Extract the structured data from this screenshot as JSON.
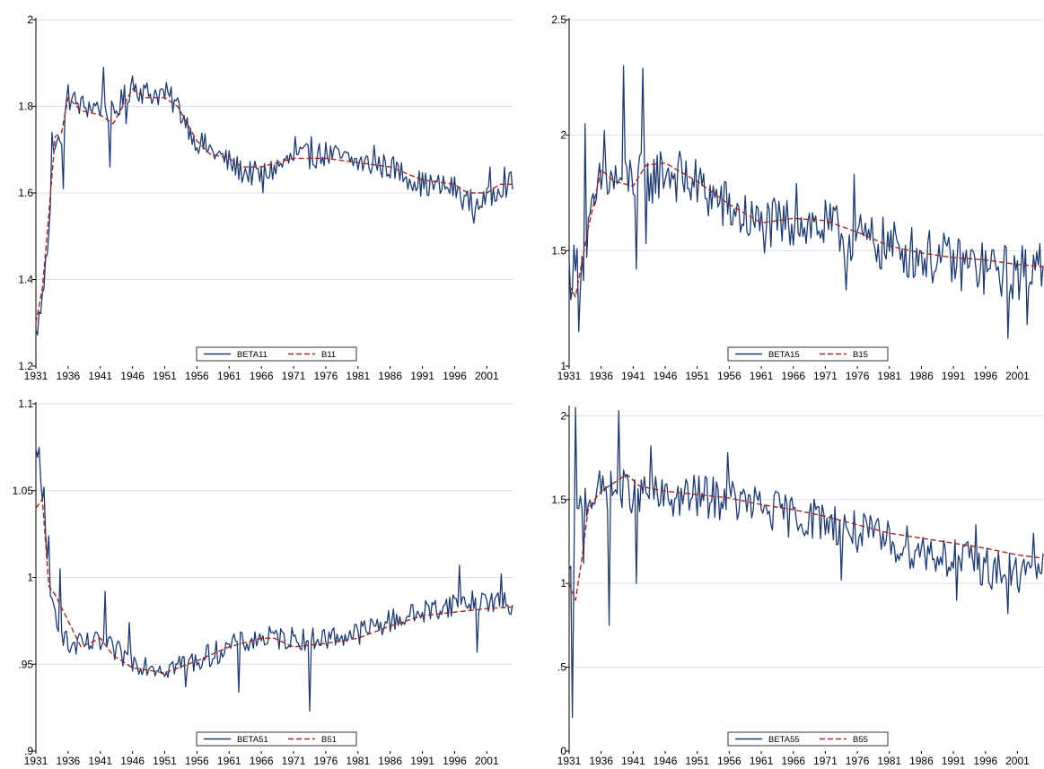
{
  "colors": {
    "solid": "#1f3a6e",
    "dashed": "#9a2a2a",
    "grid": "#dcdcf0",
    "axis": "#000000"
  },
  "chart_data": [
    {
      "type": "line",
      "title": "",
      "xlabel": "",
      "ylabel": "",
      "xlim": [
        1931,
        2005
      ],
      "ylim": [
        1.2,
        2.0
      ],
      "yticks": [
        1.2,
        1.4,
        1.6,
        1.8,
        2.0
      ],
      "ytick_labels": [
        "1.2",
        "1.4",
        "1.6",
        "1.8",
        "2"
      ],
      "xticks": [
        1931,
        1936,
        1941,
        1946,
        1951,
        1956,
        1961,
        1966,
        1971,
        1976,
        1981,
        1986,
        1991,
        1996,
        2001
      ],
      "grid": true,
      "legend": "bottom-center",
      "series": [
        {
          "name": "BETA11",
          "style": "solid",
          "volatility": 0.03,
          "x": [
            1931,
            1932,
            1933,
            1934,
            1935,
            1936,
            1938,
            1941,
            1943,
            1946,
            1948,
            1951,
            1953,
            1956,
            1958,
            1961,
            1963,
            1966,
            1971,
            1976,
            1981,
            1986,
            1991,
            1996,
            1998,
            2001,
            2003,
            2005
          ],
          "y": [
            1.27,
            1.35,
            1.52,
            1.73,
            1.7,
            1.82,
            1.8,
            1.8,
            1.78,
            1.85,
            1.83,
            1.83,
            1.8,
            1.72,
            1.7,
            1.67,
            1.65,
            1.64,
            1.68,
            1.69,
            1.67,
            1.66,
            1.62,
            1.61,
            1.58,
            1.58,
            1.62,
            1.62
          ],
          "spikes": [
            [
              1932.6,
              1.45
            ],
            [
              1933.4,
              1.74
            ],
            [
              1935.2,
              1.61
            ],
            [
              1936.0,
              1.85
            ],
            [
              1941.6,
              1.89
            ],
            [
              1942.4,
              1.66
            ],
            [
              1945.0,
              1.76
            ],
            [
              1946.0,
              1.87
            ],
            [
              1955.4,
              1.73
            ],
            [
              1966.2,
              1.6
            ],
            [
              1971.3,
              1.73
            ],
            [
              1973.8,
              1.73
            ],
            [
              1983.4,
              1.71
            ],
            [
              1999.0,
              1.53
            ],
            [
              2001.5,
              1.66
            ],
            [
              2003.7,
              1.66
            ]
          ]
        },
        {
          "name": "B11",
          "style": "dashed",
          "volatility": 0,
          "x": [
            1931,
            1932,
            1933,
            1934,
            1935,
            1936,
            1938,
            1941,
            1943,
            1946,
            1948,
            1951,
            1953,
            1956,
            1958,
            1961,
            1963,
            1966,
            1971,
            1976,
            1981,
            1986,
            1991,
            1996,
            1998,
            2001,
            2003,
            2005
          ],
          "y": [
            1.3,
            1.38,
            1.55,
            1.73,
            1.74,
            1.82,
            1.79,
            1.78,
            1.76,
            1.84,
            1.82,
            1.82,
            1.8,
            1.72,
            1.69,
            1.68,
            1.66,
            1.66,
            1.68,
            1.68,
            1.67,
            1.66,
            1.63,
            1.62,
            1.6,
            1.6,
            1.62,
            1.62
          ]
        }
      ]
    },
    {
      "type": "line",
      "title": "",
      "xlabel": "",
      "ylabel": "",
      "xlim": [
        1931,
        2005
      ],
      "ylim": [
        1.0,
        2.5
      ],
      "yticks": [
        1.0,
        1.5,
        2.0,
        2.5
      ],
      "ytick_labels": [
        "1",
        "1.5",
        "2",
        "2.5"
      ],
      "xticks": [
        1931,
        1936,
        1941,
        1946,
        1951,
        1956,
        1961,
        1966,
        1971,
        1976,
        1981,
        1986,
        1991,
        1996,
        2001
      ],
      "grid": true,
      "legend": "bottom-center",
      "series": [
        {
          "name": "BETA15",
          "style": "solid",
          "volatility": 0.12,
          "x": [
            1931,
            1933,
            1936,
            1938,
            1941,
            1943,
            1946,
            1951,
            1956,
            1961,
            1966,
            1971,
            1976,
            1981,
            1986,
            1991,
            1996,
            2001,
            2005
          ],
          "y": [
            1.4,
            1.45,
            1.8,
            1.8,
            1.82,
            1.8,
            1.85,
            1.78,
            1.68,
            1.6,
            1.62,
            1.6,
            1.55,
            1.52,
            1.48,
            1.45,
            1.42,
            1.4,
            1.45
          ],
          "spikes": [
            [
              1932.6,
              1.15
            ],
            [
              1933.6,
              2.05
            ],
            [
              1936.6,
              2.02
            ],
            [
              1939.5,
              2.3
            ],
            [
              1941.6,
              1.42
            ],
            [
              1942.5,
              2.29
            ],
            [
              1943.0,
              1.53
            ],
            [
              1966.5,
              1.79
            ],
            [
              1974.2,
              1.33
            ],
            [
              1975.6,
              1.83
            ],
            [
              1999.5,
              1.12
            ],
            [
              2002.5,
              1.18
            ],
            [
              2004.5,
              1.53
            ]
          ]
        },
        {
          "name": "B15",
          "style": "dashed",
          "volatility": 0,
          "x": [
            1931,
            1932,
            1934,
            1936,
            1938,
            1941,
            1943,
            1946,
            1951,
            1956,
            1961,
            1966,
            1971,
            1976,
            1981,
            1986,
            1991,
            1996,
            2001,
            2005
          ],
          "y": [
            1.35,
            1.3,
            1.6,
            1.85,
            1.8,
            1.78,
            1.87,
            1.88,
            1.8,
            1.7,
            1.62,
            1.64,
            1.63,
            1.58,
            1.52,
            1.49,
            1.47,
            1.46,
            1.44,
            1.43
          ]
        }
      ]
    },
    {
      "type": "line",
      "title": "",
      "xlabel": "",
      "ylabel": "",
      "xlim": [
        1931,
        2005
      ],
      "ylim": [
        0.9,
        1.1
      ],
      "yticks": [
        0.9,
        0.95,
        1.0,
        1.05,
        1.1
      ],
      "ytick_labels": [
        ".9",
        ".95",
        "1",
        "1.05",
        "1.1"
      ],
      "xticks": [
        1931,
        1936,
        1941,
        1946,
        1951,
        1956,
        1961,
        1966,
        1971,
        1976,
        1981,
        1986,
        1991,
        1996,
        2001
      ],
      "grid": true,
      "legend": "bottom-center",
      "series": [
        {
          "name": "BETA51",
          "style": "solid",
          "volatility": 0.007,
          "x": [
            1931,
            1932,
            1933,
            1936,
            1941,
            1946,
            1951,
            1956,
            1961,
            1966,
            1971,
            1976,
            1981,
            1986,
            1991,
            1996,
            2001,
            2005
          ],
          "y": [
            1.07,
            1.05,
            0.99,
            0.96,
            0.962,
            0.952,
            0.948,
            0.952,
            0.96,
            0.965,
            0.965,
            0.965,
            0.968,
            0.975,
            0.98,
            0.985,
            0.987,
            0.983
          ],
          "spikes": [
            [
              1931.4,
              1.075
            ],
            [
              1932.2,
              1.052
            ],
            [
              1933.0,
              1.024
            ],
            [
              1934.8,
              1.005
            ],
            [
              1941.8,
              0.992
            ],
            [
              1945.6,
              0.974
            ],
            [
              1954.3,
              0.937
            ],
            [
              1962.6,
              0.934
            ],
            [
              1973.4,
              0.923
            ],
            [
              1996.8,
              1.007
            ],
            [
              1999.5,
              0.957
            ],
            [
              2003.2,
              1.002
            ]
          ]
        },
        {
          "name": "B51",
          "style": "dashed",
          "volatility": 0,
          "x": [
            1931,
            1932,
            1933,
            1934,
            1936,
            1938,
            1941,
            1943,
            1946,
            1951,
            1956,
            1961,
            1966,
            1968,
            1971,
            1976,
            1981,
            1986,
            1991,
            1996,
            2001,
            2005
          ],
          "y": [
            1.04,
            1.045,
            0.995,
            0.99,
            0.975,
            0.96,
            0.965,
            0.955,
            0.948,
            0.945,
            0.952,
            0.96,
            0.965,
            0.965,
            0.96,
            0.962,
            0.965,
            0.972,
            0.978,
            0.98,
            0.982,
            0.983
          ]
        }
      ]
    },
    {
      "type": "line",
      "title": "",
      "xlabel": "",
      "ylabel": "",
      "xlim": [
        1931,
        2005
      ],
      "ylim": [
        0.0,
        2.05
      ],
      "yticks": [
        0.0,
        0.5,
        1.0,
        1.5,
        2.0
      ],
      "ytick_labels": [
        "0",
        ".5",
        "1",
        "1.5",
        "2"
      ],
      "xticks": [
        1931,
        1936,
        1941,
        1946,
        1951,
        1956,
        1961,
        1966,
        1971,
        1976,
        1981,
        1986,
        1991,
        1996,
        2001
      ],
      "grid": true,
      "legend": "bottom-center",
      "series": [
        {
          "name": "BETA55",
          "style": "solid",
          "volatility": 0.13,
          "x": [
            1931,
            1932,
            1933,
            1936,
            1941,
            1946,
            1951,
            1956,
            1961,
            1966,
            1971,
            1976,
            1981,
            1986,
            1991,
            1996,
            2001,
            2005
          ],
          "y": [
            1.0,
            1.3,
            1.5,
            1.55,
            1.55,
            1.5,
            1.52,
            1.5,
            1.45,
            1.4,
            1.38,
            1.3,
            1.25,
            1.2,
            1.15,
            1.1,
            1.05,
            1.12
          ],
          "spikes": [
            [
              1931.4,
              0.2
            ],
            [
              1932.0,
              2.05
            ],
            [
              1933.2,
              1.12
            ],
            [
              1938.8,
              2.03
            ],
            [
              1937.3,
              0.75
            ],
            [
              1941.6,
              1.0
            ],
            [
              1943.7,
              1.82
            ],
            [
              1955.8,
              1.78
            ],
            [
              1973.6,
              1.02
            ],
            [
              1991.5,
              0.9
            ],
            [
              1994.6,
              1.35
            ],
            [
              1999.4,
              0.82
            ],
            [
              2003.5,
              1.3
            ]
          ]
        },
        {
          "name": "B55",
          "style": "dashed",
          "volatility": 0,
          "x": [
            1931,
            1932,
            1933,
            1934,
            1936,
            1938,
            1940,
            1942,
            1946,
            1951,
            1956,
            1961,
            1966,
            1971,
            1976,
            1981,
            1986,
            1991,
            1996,
            2001,
            2005
          ],
          "y": [
            1.0,
            0.9,
            1.15,
            1.45,
            1.55,
            1.6,
            1.65,
            1.58,
            1.55,
            1.53,
            1.51,
            1.47,
            1.44,
            1.4,
            1.35,
            1.3,
            1.27,
            1.24,
            1.21,
            1.17,
            1.15
          ]
        }
      ]
    }
  ]
}
